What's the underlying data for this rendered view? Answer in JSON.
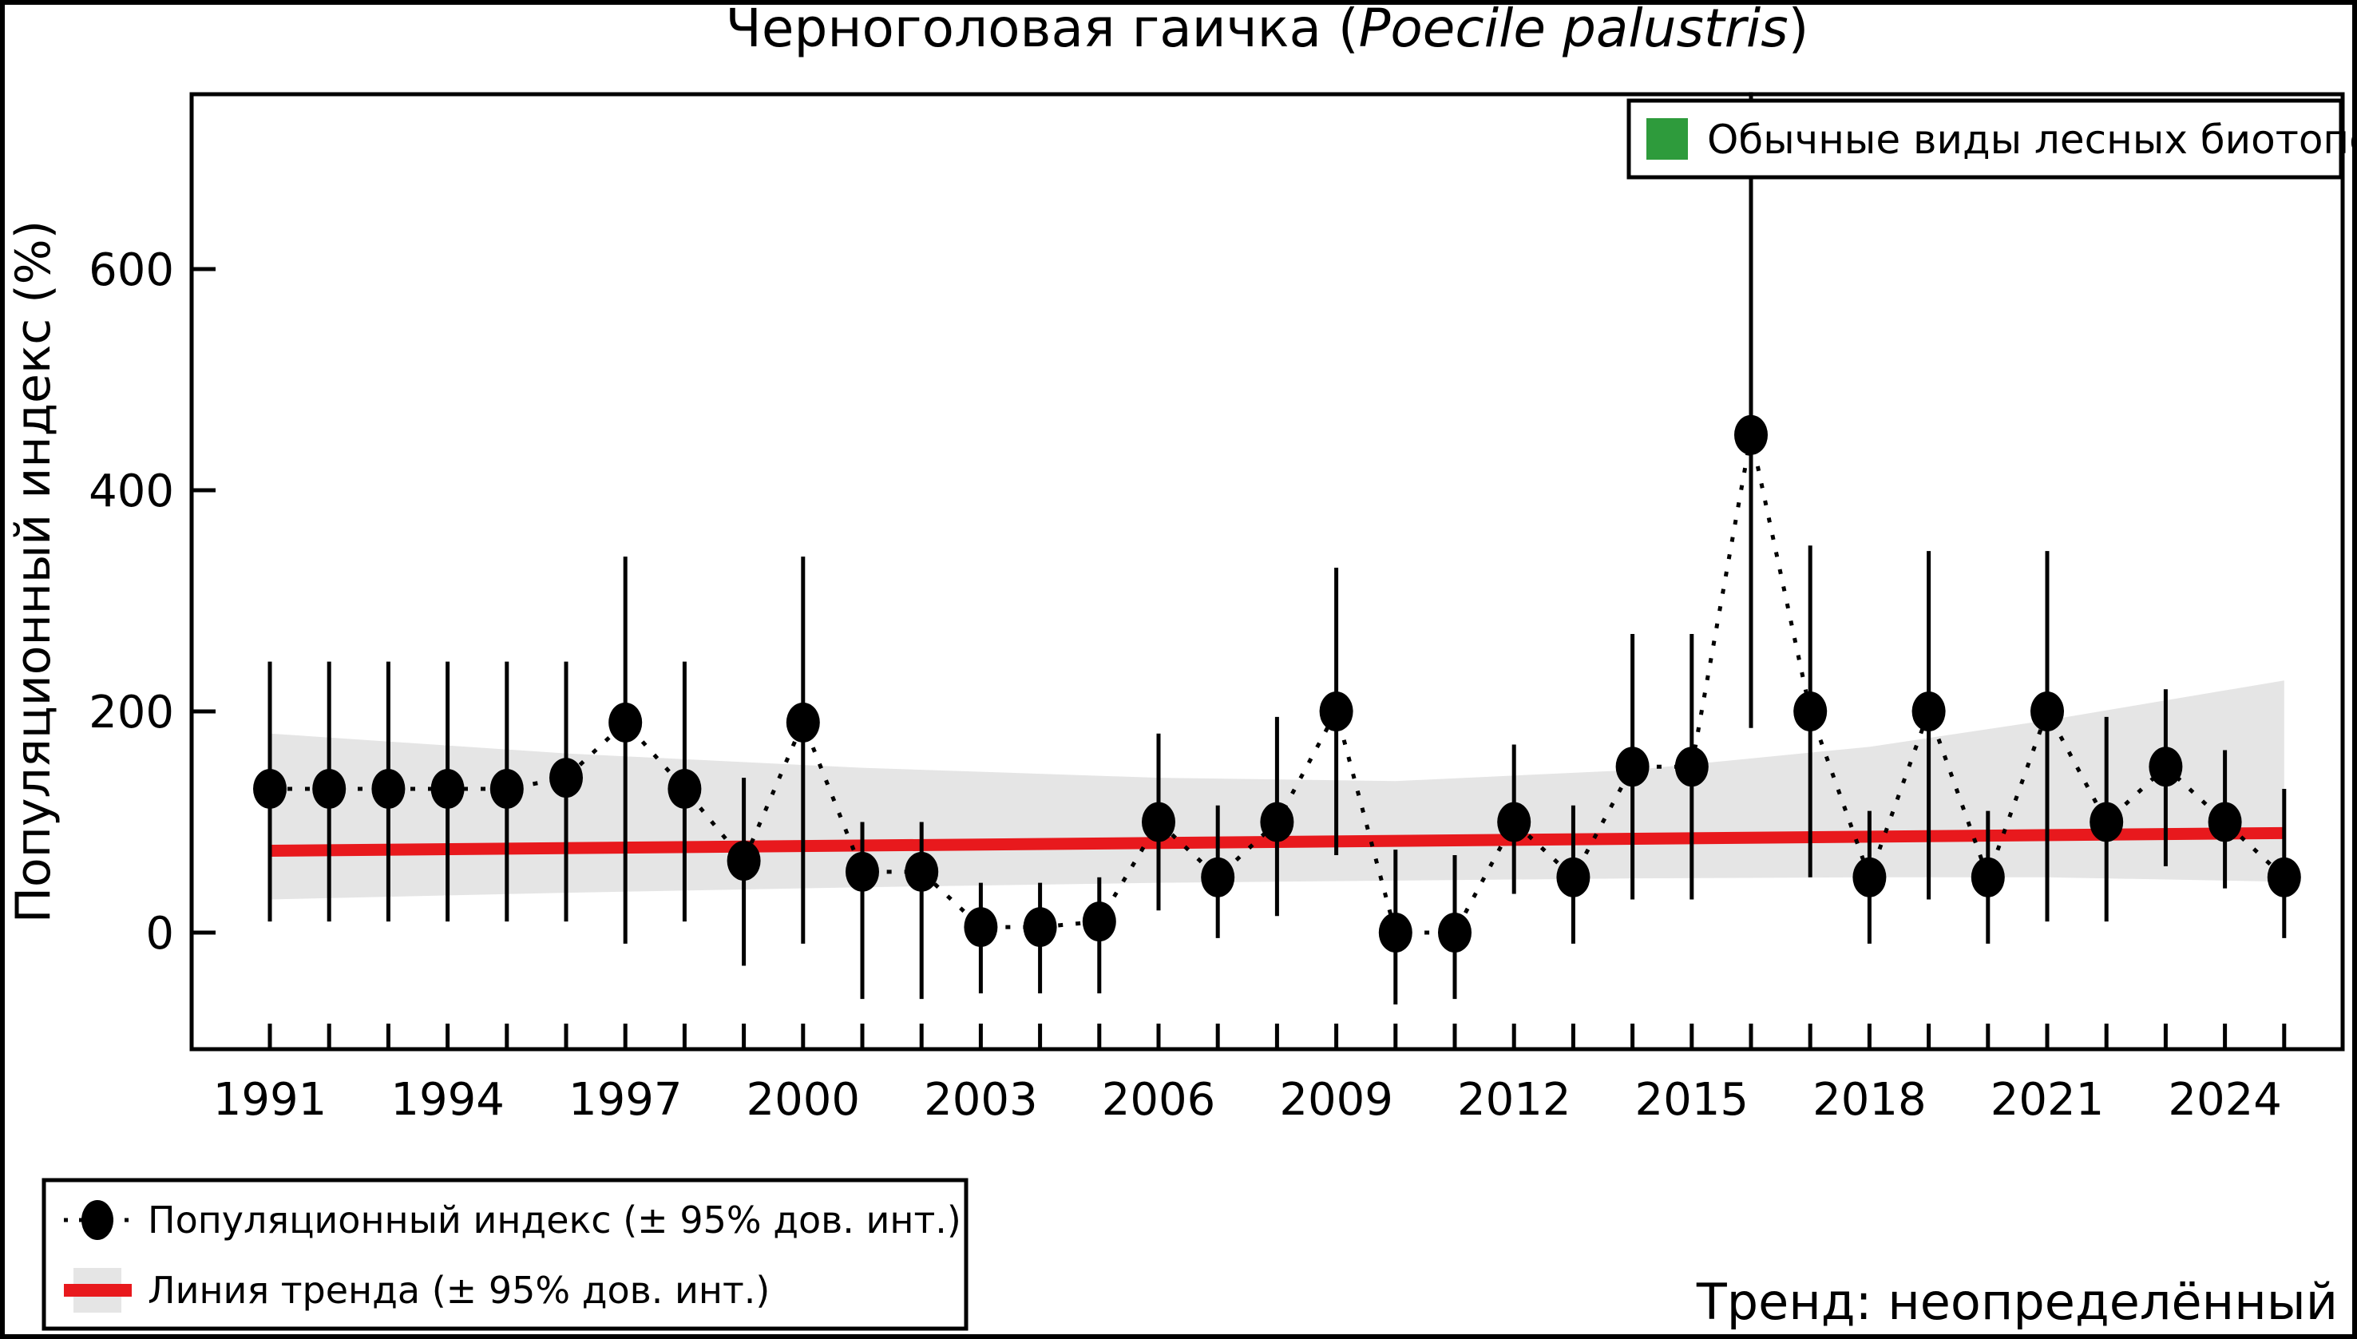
{
  "figure": {
    "title_prefix": "Черноголовая гаичка (",
    "title_italic": "Poecile palustris",
    "title_suffix": ")",
    "y_axis_label": "Популяционный индекс (%)",
    "trend_caption": "Тренд: неопределённый"
  },
  "legend_top": {
    "label": "Обычные виды лесных биотопов"
  },
  "legend_bottom": {
    "index_label": "Популяционный индекс (± 95% дов. инт.)",
    "trend_label": "Линия тренда (± 95% дов. инт.)"
  },
  "colors": {
    "trend_red": "#E8191D",
    "band_gray": "#E5E5E5",
    "point_black": "#000000",
    "legend_green": "#2E9B3C",
    "background": "#FFFFFF",
    "border": "#000000"
  },
  "chart_data": {
    "type": "line",
    "title": "Черноголовая гаичка (Poecile palustris)",
    "xlabel": "",
    "ylabel": "Популяционный индекс (%)",
    "legend_position": "top-right",
    "grid": false,
    "ylim": [
      -105,
      758
    ],
    "yticks": [
      0,
      200,
      400,
      600
    ],
    "xticks_labeled": [
      1991,
      1994,
      1997,
      2000,
      2003,
      2006,
      2009,
      2012,
      2015,
      2018,
      2021,
      2024
    ],
    "x": [
      1991,
      1992,
      1993,
      1994,
      1995,
      1996,
      1997,
      1998,
      1999,
      2000,
      2001,
      2002,
      2003,
      2004,
      2005,
      2006,
      2007,
      2008,
      2009,
      2010,
      2011,
      2012,
      2013,
      2014,
      2015,
      2016,
      2017,
      2018,
      2019,
      2020,
      2021,
      2022,
      2023,
      2024,
      2025
    ],
    "series": [
      {
        "name": "Популяционный индекс",
        "values": [
          130,
          130,
          130,
          130,
          130,
          140,
          190,
          130,
          65,
          190,
          55,
          55,
          5,
          5,
          10,
          100,
          50,
          100,
          200,
          0,
          0,
          100,
          50,
          150,
          150,
          450,
          200,
          50,
          200,
          50,
          200,
          100,
          150,
          100,
          50
        ],
        "ci_low": [
          10,
          10,
          10,
          10,
          10,
          10,
          -10,
          10,
          -30,
          -10,
          -60,
          -60,
          -55,
          -55,
          -55,
          20,
          -5,
          15,
          70,
          -65,
          -60,
          35,
          -10,
          30,
          30,
          185,
          50,
          -10,
          30,
          -10,
          10,
          10,
          60,
          40,
          -5
        ],
        "ci_high": [
          245,
          245,
          245,
          245,
          245,
          245,
          340,
          245,
          140,
          340,
          100,
          100,
          45,
          45,
          50,
          180,
          115,
          195,
          330,
          75,
          70,
          170,
          115,
          270,
          270,
          760,
          350,
          110,
          345,
          110,
          345,
          195,
          220,
          165,
          130
        ]
      }
    ],
    "trend_line": {
      "x": [
        1991,
        2025
      ],
      "y": [
        74,
        90
      ]
    },
    "confidence_band": {
      "x": [
        1991,
        1996,
        2001,
        2006,
        2010,
        2014,
        2018,
        2021,
        2025
      ],
      "top": [
        180,
        162,
        149,
        140,
        137,
        147,
        168,
        192,
        228
      ],
      "bottom": [
        30,
        36,
        41,
        45,
        47,
        49,
        50,
        50,
        46
      ]
    }
  }
}
